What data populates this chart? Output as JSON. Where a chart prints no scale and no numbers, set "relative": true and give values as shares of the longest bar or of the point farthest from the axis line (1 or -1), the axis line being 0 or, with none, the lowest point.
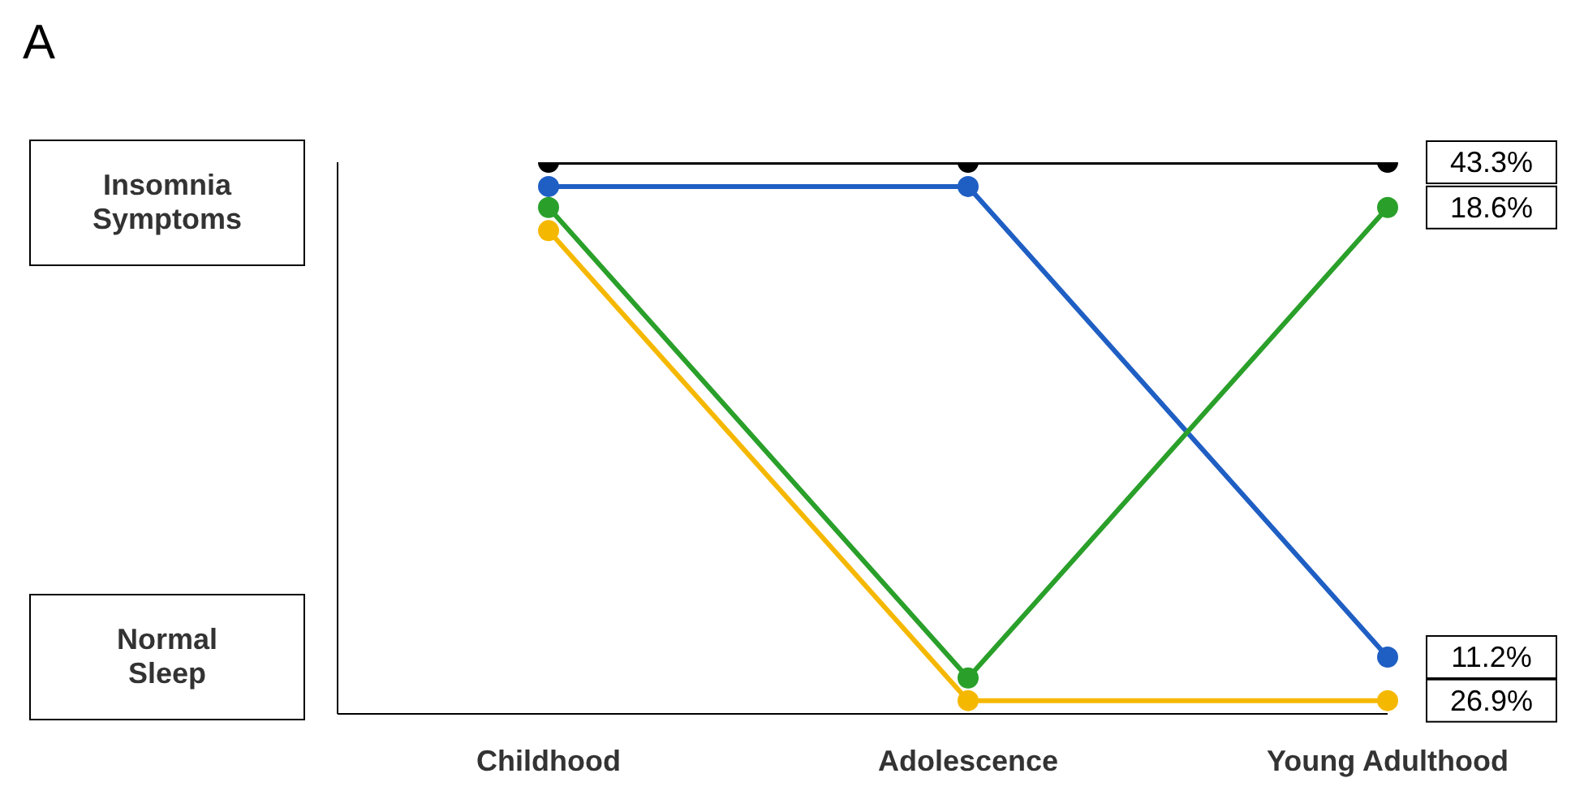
{
  "chart_data": {
    "type": "line",
    "title": "A",
    "categories": [
      "Childhood",
      "Adolescence",
      "Young Adulthood"
    ],
    "relative": true,
    "marker": "circle",
    "legend": false,
    "grid": false,
    "annotations": [
      "Insomnia Symptoms",
      "Normal Sleep",
      {
        "text": "43.3%",
        "x": "Young Adulthood",
        "y": 1
      },
      {
        "text": "18.6%",
        "x": "Young Adulthood",
        "y": 0.918
      },
      {
        "text": "11.2%",
        "x": "Young Adulthood",
        "y": 0.103
      },
      {
        "text": "26.9%",
        "x": "Young Adulthood",
        "y": 0.024
      }
    ],
    "series": [
      {
        "color": "#000000",
        "values": [
          1,
          1,
          1
        ]
      },
      {
        "color": "#1f5fc4",
        "values": [
          0.956,
          0.956,
          0.103
        ]
      },
      {
        "color": "#2aa02a",
        "values": [
          0.918,
          0.065,
          0.918
        ]
      },
      {
        "color": "#f5b800",
        "values": [
          0.876,
          0.024,
          0.024
        ]
      }
    ]
  }
}
